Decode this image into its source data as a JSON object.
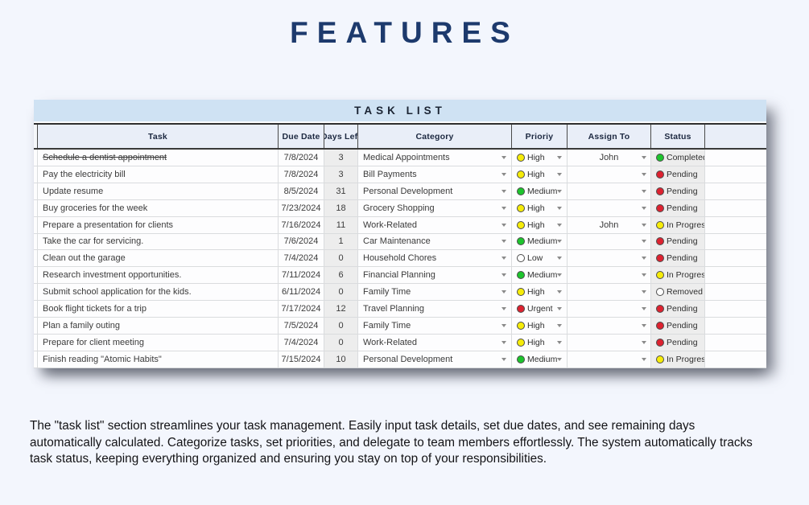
{
  "page": {
    "title": "FEATURES",
    "description": "The \"task list\" section streamlines your task management. Easily input task details, set due dates, and see remaining days automatically calculated. Categorize tasks, set priorities, and delegate to team members effortlessly. The system automatically tracks task status, keeping everything organized and ensuring you stay on top of your responsibilities."
  },
  "table": {
    "title": "TASK LIST",
    "columns": [
      {
        "key": "task",
        "label": "Task"
      },
      {
        "key": "due_date",
        "label": "Due Date"
      },
      {
        "key": "days_left",
        "label": "Days Left"
      },
      {
        "key": "category",
        "label": "Category"
      },
      {
        "key": "priority",
        "label": "Prioriy"
      },
      {
        "key": "assign_to",
        "label": "Assign To"
      },
      {
        "key": "status",
        "label": "Status"
      },
      {
        "key": "extra",
        "label": ""
      }
    ],
    "rows": [
      {
        "task": "Schedule a dentist appointment",
        "completed": true,
        "due_date": "7/8/2024",
        "days_left": "3",
        "category": "Medical Appointments",
        "priority": "High",
        "priority_color": "yellow",
        "assign_to": "John",
        "status": "Completed",
        "status_color": "green"
      },
      {
        "task": "Pay the electricity bill",
        "completed": false,
        "due_date": "7/8/2024",
        "days_left": "3",
        "category": "Bill Payments",
        "priority": "High",
        "priority_color": "yellow",
        "assign_to": "",
        "status": "Pending",
        "status_color": "red"
      },
      {
        "task": "Update resume",
        "completed": false,
        "due_date": "8/5/2024",
        "days_left": "31",
        "category": "Personal Development",
        "priority": "Medium",
        "priority_color": "green",
        "assign_to": "",
        "status": "Pending",
        "status_color": "red"
      },
      {
        "task": "Buy groceries for the week",
        "completed": false,
        "due_date": "7/23/2024",
        "days_left": "18",
        "category": "Grocery Shopping",
        "priority": "High",
        "priority_color": "yellow",
        "assign_to": "",
        "status": "Pending",
        "status_color": "red"
      },
      {
        "task": "Prepare a presentation for clients",
        "completed": false,
        "due_date": "7/16/2024",
        "days_left": "11",
        "category": "Work-Related",
        "priority": "High",
        "priority_color": "yellow",
        "assign_to": "John",
        "status": "In Progress",
        "status_color": "yellow"
      },
      {
        "task": "Take the car for servicing.",
        "completed": false,
        "due_date": "7/6/2024",
        "days_left": "1",
        "category": "Car Maintenance",
        "priority": "Medium",
        "priority_color": "green",
        "assign_to": "",
        "status": "Pending",
        "status_color": "red"
      },
      {
        "task": "Clean out the garage",
        "completed": false,
        "due_date": "7/4/2024",
        "days_left": "0",
        "category": "Household Chores",
        "priority": "Low",
        "priority_color": "white",
        "assign_to": "",
        "status": "Pending",
        "status_color": "red"
      },
      {
        "task": "Research investment opportunities.",
        "completed": false,
        "due_date": "7/11/2024",
        "days_left": "6",
        "category": "Financial Planning",
        "priority": "Medium",
        "priority_color": "green",
        "assign_to": "",
        "status": "In Progress",
        "status_color": "yellow"
      },
      {
        "task": "Submit school application for the kids.",
        "completed": false,
        "due_date": "6/11/2024",
        "days_left": "0",
        "category": "Family Time",
        "priority": "High",
        "priority_color": "yellow",
        "assign_to": "",
        "status": "Removed",
        "status_color": "white"
      },
      {
        "task": "Book flight tickets for a trip",
        "completed": false,
        "due_date": "7/17/2024",
        "days_left": "12",
        "category": "Travel Planning",
        "priority": "Urgent",
        "priority_color": "red",
        "assign_to": "",
        "status": "Pending",
        "status_color": "red"
      },
      {
        "task": "Plan a family outing",
        "completed": false,
        "due_date": "7/5/2024",
        "days_left": "0",
        "category": "Family Time",
        "priority": "High",
        "priority_color": "yellow",
        "assign_to": "",
        "status": "Pending",
        "status_color": "red"
      },
      {
        "task": "Prepare for client meeting",
        "completed": false,
        "due_date": "7/4/2024",
        "days_left": "0",
        "category": "Work-Related",
        "priority": "High",
        "priority_color": "yellow",
        "assign_to": "",
        "status": "Pending",
        "status_color": "red"
      },
      {
        "task": "Finish reading \"Atomic Habits\"",
        "completed": false,
        "due_date": "7/15/2024",
        "days_left": "10",
        "category": "Personal Development",
        "priority": "Medium",
        "priority_color": "green",
        "assign_to": "",
        "status": "In Progress",
        "status_color": "yellow"
      }
    ]
  },
  "palette": {
    "yellow": "#f6ec09",
    "green": "#1dc42d",
    "red": "#dd2230",
    "white": "#ffffff",
    "accent_navy": "#1d3a6d",
    "banner_blue": "#cfe2f3",
    "header_bg": "#e9eef8"
  }
}
